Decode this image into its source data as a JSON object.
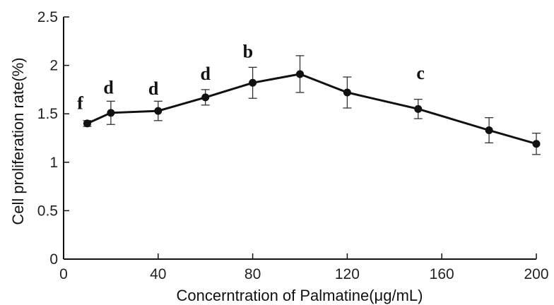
{
  "chart_data": {
    "type": "line",
    "xlabel": "Concerntration of Palmatine(μg/mL)",
    "ylabel": "Cell proliferation rate(%)",
    "xlim": [
      0,
      200
    ],
    "ylim": [
      0,
      2.5
    ],
    "xticks": [
      "0",
      "40",
      "80",
      "120",
      "160",
      "200"
    ],
    "yticks": [
      "0",
      "0.5",
      "1",
      "1.5",
      "2",
      "2.5"
    ],
    "grid": false,
    "series": [
      {
        "x": [
          10,
          20,
          40,
          60,
          80,
          100,
          120,
          150,
          180,
          200
        ],
        "y": [
          1.4,
          1.51,
          1.53,
          1.67,
          1.82,
          1.91,
          1.72,
          1.55,
          1.33,
          1.19
        ],
        "error": [
          0.03,
          0.12,
          0.1,
          0.08,
          0.16,
          0.19,
          0.16,
          0.1,
          0.13,
          0.11
        ]
      }
    ],
    "annotations": [
      {
        "text": "f",
        "x": 7,
        "y": 1.55
      },
      {
        "text": "d",
        "x": 19,
        "y": 1.71
      },
      {
        "text": "d",
        "x": 38,
        "y": 1.7
      },
      {
        "text": "d",
        "x": 60,
        "y": 1.85
      },
      {
        "text": "b",
        "x": 78,
        "y": 2.08
      },
      {
        "text": "c",
        "x": 151,
        "y": 1.86
      }
    ]
  }
}
